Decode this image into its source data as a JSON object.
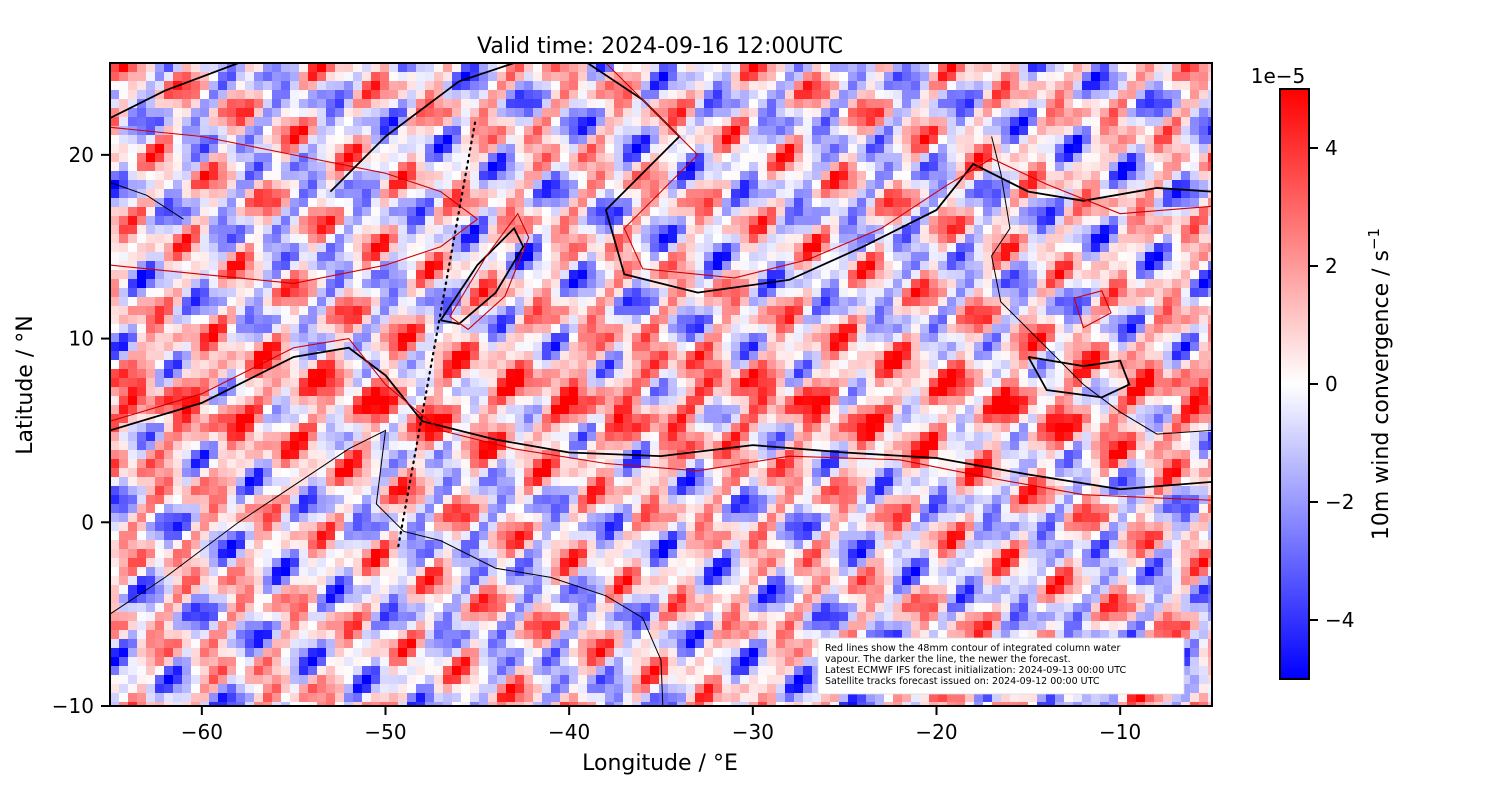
{
  "chart_data": {
    "type": "heatmap",
    "title": "Valid time: 2024-09-16 12:00UTC",
    "xlabel": "Longitude / °E",
    "ylabel": "Latitude / °N",
    "xlim": [
      -65,
      -5
    ],
    "ylim": [
      -10,
      25
    ],
    "xticks": [
      -60,
      -50,
      -40,
      -30,
      -20,
      -10
    ],
    "yticks": [
      -10,
      0,
      10,
      20
    ],
    "xtick_labels": [
      "−60",
      "−50",
      "−40",
      "−30",
      "−20",
      "−10"
    ],
    "ytick_labels": [
      "−10",
      "0",
      "10",
      "20"
    ],
    "colormap": "bwr",
    "colorbar": {
      "label": "10m wind convergence / s",
      "label_superscript": "−1",
      "range": [
        -5,
        5
      ],
      "ticks": [
        -4,
        -2,
        0,
        2,
        4
      ],
      "tick_labels": [
        "−4",
        "−2",
        "0",
        "2",
        "4"
      ],
      "scale_label": "1e−5"
    },
    "annotation_lines": [
      "Red lines show the 48mm contour of integrated column water",
      "vapour. The darker the line, the newer the forecast.",
      "Latest ECMWF IFS forecast initialization: 2024-09-13 00:00 UTC",
      "Satellite tracks forecast issued on: 2024-09-12 00:00 UTC"
    ],
    "satellite_track": [
      [
        -49.3,
        -1.3
      ],
      [
        -45.1,
        21.9
      ]
    ],
    "moisture_contours": [
      {
        "name": "newest",
        "color": "#000000",
        "points": [
          [
            -47,
            11
          ],
          [
            -45,
            14
          ],
          [
            -43,
            16
          ],
          [
            -42.5,
            15
          ],
          [
            -44,
            12.5
          ],
          [
            -46,
            10.8
          ],
          [
            -47,
            11
          ]
        ]
      },
      {
        "name": "older",
        "color": "#cc0000",
        "points": [
          [
            -46.5,
            11.2
          ],
          [
            -44.5,
            14.5
          ],
          [
            -42.8,
            16.8
          ],
          [
            -42.2,
            15.5
          ],
          [
            -43.5,
            12.3
          ],
          [
            -45.5,
            10.5
          ],
          [
            -46.5,
            11.2
          ]
        ]
      },
      {
        "name": "newest",
        "color": "#000000",
        "points": [
          [
            -65,
            5
          ],
          [
            -60,
            6.5
          ],
          [
            -55,
            9
          ],
          [
            -52,
            9.5
          ],
          [
            -50,
            8
          ],
          [
            -48,
            5.5
          ],
          [
            -44,
            4.5
          ],
          [
            -40,
            3.8
          ],
          [
            -35,
            3.6
          ],
          [
            -30,
            4.2
          ],
          [
            -25,
            3.8
          ],
          [
            -20,
            3.5
          ],
          [
            -15,
            2.6
          ],
          [
            -10,
            1.8
          ],
          [
            -5,
            2.2
          ]
        ]
      },
      {
        "name": "older",
        "color": "#cc0000",
        "points": [
          [
            -65,
            5.5
          ],
          [
            -60,
            7
          ],
          [
            -55,
            9.5
          ],
          [
            -52,
            10
          ],
          [
            -50,
            7.5
          ],
          [
            -47,
            5
          ],
          [
            -43,
            4
          ],
          [
            -38,
            3.2
          ],
          [
            -33,
            2.8
          ],
          [
            -28,
            3.6
          ],
          [
            -22,
            3.4
          ],
          [
            -17,
            2.4
          ],
          [
            -12,
            1.5
          ],
          [
            -5,
            1.2
          ]
        ]
      },
      {
        "name": "older",
        "color": "#cc0000",
        "points": [
          [
            -65,
            14
          ],
          [
            -60,
            13.5
          ],
          [
            -55,
            13
          ],
          [
            -50,
            14
          ],
          [
            -47,
            15
          ],
          [
            -45,
            16.5
          ],
          [
            -47,
            18
          ],
          [
            -50,
            19
          ],
          [
            -55,
            20
          ],
          [
            -60,
            21
          ],
          [
            -65,
            21.5
          ]
        ]
      },
      {
        "name": "newest",
        "color": "#000000",
        "points": [
          [
            -65,
            22
          ],
          [
            -62,
            23.5
          ],
          [
            -58,
            25
          ]
        ]
      },
      {
        "name": "newest",
        "color": "#000000",
        "points": [
          [
            -53,
            18
          ],
          [
            -50,
            21
          ],
          [
            -46,
            24
          ],
          [
            -43,
            25
          ]
        ]
      },
      {
        "name": "newest",
        "color": "#000000",
        "points": [
          [
            -39,
            25
          ],
          [
            -36,
            23
          ],
          [
            -34,
            21
          ],
          [
            -36,
            19
          ],
          [
            -38,
            17
          ],
          [
            -37,
            13.5
          ],
          [
            -33,
            12.5
          ],
          [
            -28,
            13.2
          ],
          [
            -24,
            15
          ],
          [
            -20,
            17
          ],
          [
            -18,
            19.5
          ],
          [
            -15,
            18
          ],
          [
            -12,
            17.5
          ],
          [
            -8,
            18.2
          ],
          [
            -5,
            18
          ]
        ]
      },
      {
        "name": "older",
        "color": "#cc0000",
        "points": [
          [
            -38,
            25
          ],
          [
            -35,
            22
          ],
          [
            -33,
            20
          ],
          [
            -35,
            18
          ],
          [
            -37,
            16
          ],
          [
            -36,
            13.8
          ],
          [
            -31,
            13.3
          ],
          [
            -27,
            14.3
          ],
          [
            -23,
            16
          ],
          [
            -19.5,
            18.3
          ],
          [
            -17,
            19.8
          ],
          [
            -14,
            18.4
          ],
          [
            -10,
            16.8
          ],
          [
            -5,
            17.2
          ]
        ]
      },
      {
        "name": "newest",
        "color": "#000000",
        "points": [
          [
            -15,
            9
          ],
          [
            -12,
            8.5
          ],
          [
            -10,
            8.8
          ],
          [
            -9.5,
            7.5
          ],
          [
            -11,
            6.8
          ],
          [
            -14,
            7.2
          ],
          [
            -15,
            9
          ]
        ]
      },
      {
        "name": "older",
        "color": "#cc0000",
        "points": [
          [
            -12.5,
            12.2
          ],
          [
            -11,
            12.6
          ],
          [
            -10.5,
            11.4
          ],
          [
            -12,
            10.6
          ],
          [
            -12.5,
            12.2
          ]
        ]
      }
    ],
    "coastlines": [
      {
        "name": "south-america",
        "points": [
          [
            -65,
            -5
          ],
          [
            -62,
            -3
          ],
          [
            -58,
            0
          ],
          [
            -55,
            2
          ],
          [
            -52,
            4
          ],
          [
            -50,
            5
          ],
          [
            -50.5,
            1
          ],
          [
            -49,
            -0.5
          ],
          [
            -47,
            -1
          ],
          [
            -44,
            -2.5
          ],
          [
            -41,
            -3
          ],
          [
            -38,
            -4
          ],
          [
            -36,
            -5.2
          ],
          [
            -35,
            -7.5
          ],
          [
            -34.9,
            -10
          ]
        ]
      },
      {
        "name": "caribbean-islands",
        "points": [
          [
            -65,
            18.5
          ],
          [
            -63,
            17.8
          ],
          [
            -61,
            16.5
          ]
        ]
      },
      {
        "name": "west-africa",
        "points": [
          [
            -17,
            21
          ],
          [
            -16.5,
            19
          ],
          [
            -16,
            16
          ],
          [
            -17,
            14.5
          ],
          [
            -16.5,
            12
          ],
          [
            -15,
            10.5
          ],
          [
            -13.5,
            9
          ],
          [
            -12,
            7.5
          ],
          [
            -10,
            6
          ],
          [
            -8,
            4.8
          ],
          [
            -5,
            5
          ]
        ]
      }
    ]
  }
}
